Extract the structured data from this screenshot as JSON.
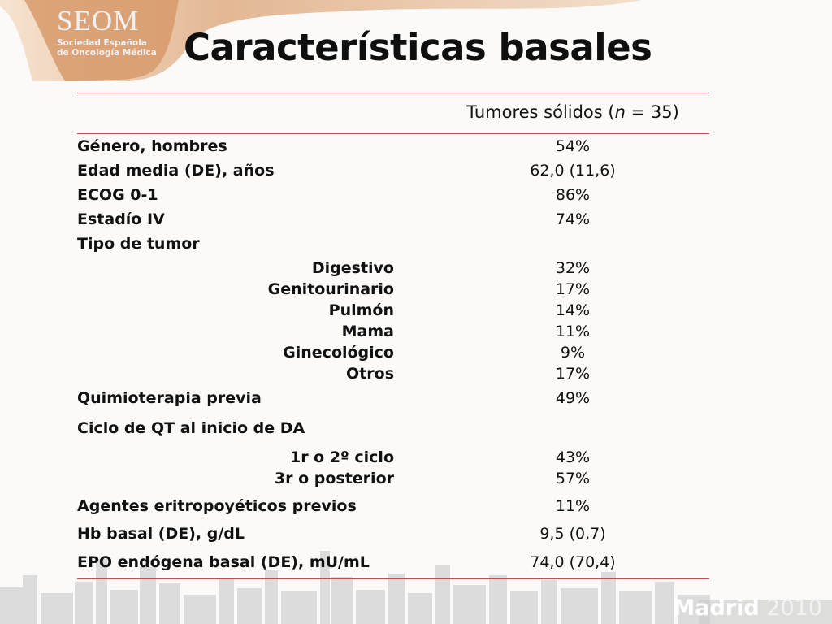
{
  "logo": {
    "word": "SEOM",
    "sub_line1": "Sociedad Española",
    "sub_line2": "de Oncología Médica"
  },
  "title": "Características basales",
  "table": {
    "column_header_pre": "Tumores sólidos (",
    "column_header_n": "n",
    "column_header_post": " = 35)",
    "rows": [
      {
        "label": "Género, hombres",
        "value": "54%"
      },
      {
        "label": "Edad media (DE), años",
        "value": "62,0 (11,6)"
      },
      {
        "label": "ECOG 0-1",
        "value": "86%"
      },
      {
        "label": "Estadío IV",
        "value": "74%"
      },
      {
        "label": "Tipo de tumor",
        "value": ""
      },
      {
        "sublabel": "Digestivo",
        "value": "32%"
      },
      {
        "sublabel": "Genitourinario",
        "value": "17%"
      },
      {
        "sublabel": "Pulmón",
        "value": "14%"
      },
      {
        "sublabel": "Mama",
        "value": "11%"
      },
      {
        "sublabel": "Ginecológico",
        "value": "9%"
      },
      {
        "sublabel": "Otros",
        "value": "17%"
      },
      {
        "label": "Quimioterapia previa",
        "value": "49%"
      },
      {
        "label": "Ciclo de QT al inicio de DA",
        "value": ""
      },
      {
        "sublabel": "1r o 2º ciclo",
        "value": "43%"
      },
      {
        "sublabel": "3r o posterior",
        "value": "57%"
      },
      {
        "label": "Agentes eritropoyéticos previos",
        "value": "11%"
      },
      {
        "label": "Hb basal (DE), g/dL",
        "value": "9,5 (0,7)"
      },
      {
        "label": "EPO endógena basal (DE), mU/mL",
        "value": "74,0 (70,4)"
      }
    ]
  },
  "footer": {
    "city": "Madrid",
    "year": "2010"
  },
  "colors": {
    "accent_rule": "#c0504d",
    "swoosh": "#e9c6a6"
  }
}
